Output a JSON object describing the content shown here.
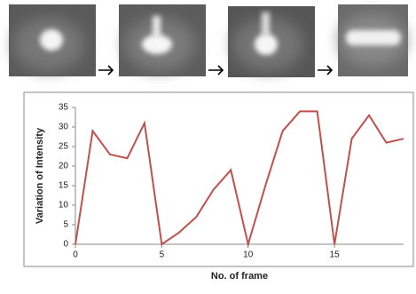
{
  "chart_data": {
    "type": "line",
    "x": [
      0,
      1,
      2,
      3,
      4,
      5,
      6,
      7,
      8,
      9,
      10,
      11,
      12,
      13,
      14,
      15,
      16,
      17,
      18,
      19
    ],
    "values": [
      0,
      29,
      23,
      22,
      31,
      0,
      3,
      7,
      14,
      19,
      0,
      15,
      29,
      34,
      34,
      0,
      27,
      33,
      26,
      27
    ],
    "color": "#c0504d",
    "xlim": [
      0,
      19
    ],
    "xticks": [
      0,
      5,
      10,
      15
    ],
    "ylim": [
      0,
      35
    ],
    "yticks": [
      0,
      5,
      10,
      15,
      20,
      25,
      30,
      35
    ],
    "xlabel": "No. of frame",
    "ylabel": "Variation of Intensity"
  }
}
